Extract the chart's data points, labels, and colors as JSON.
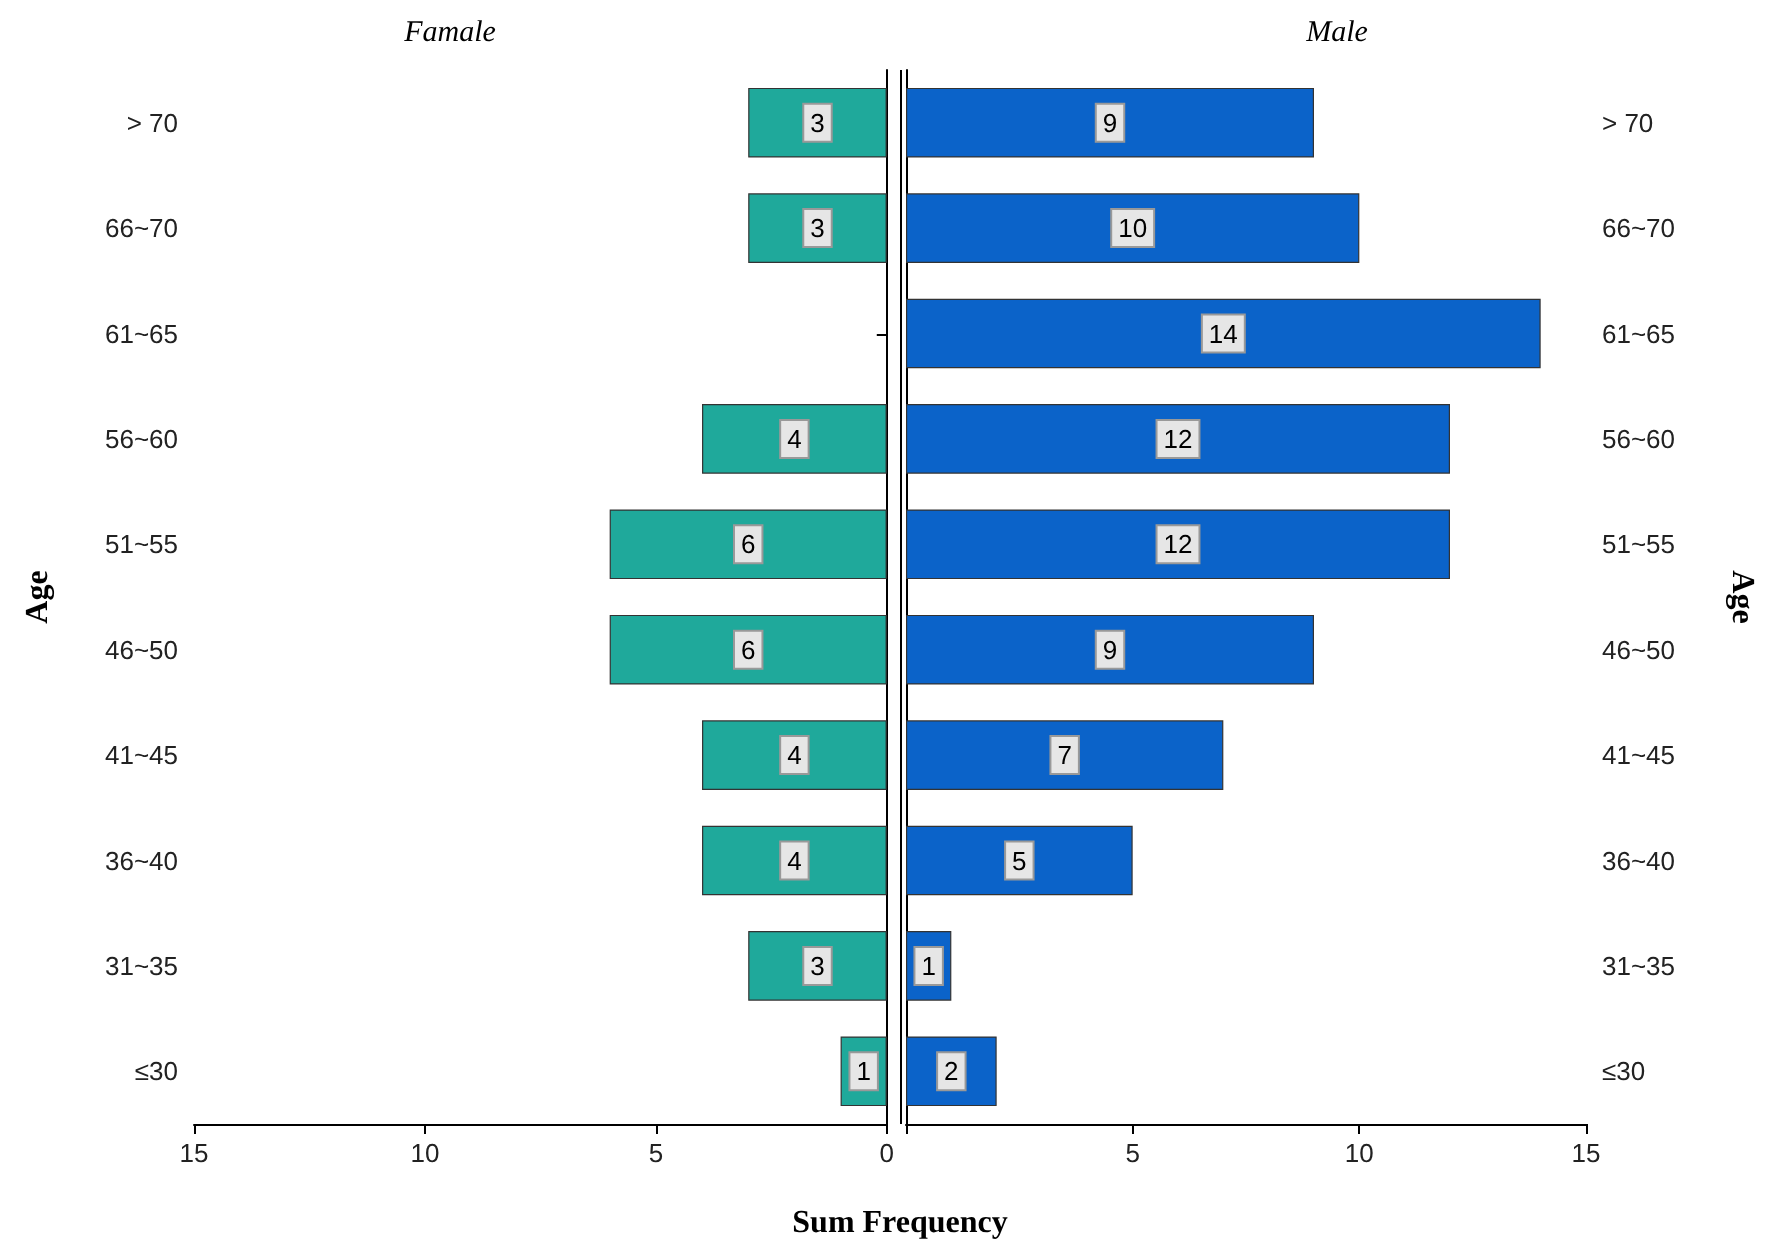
{
  "chart_data": [
    {
      "type": "bar",
      "orientation": "horizontal",
      "title": "Famale",
      "ylabel": "Age",
      "xlabel": "Sum Frequency",
      "categories": [
        "> 70",
        "66~70",
        "61~65",
        "56~60",
        "51~55",
        "46~50",
        "41~45",
        "36~40",
        "31~35",
        "≤30"
      ],
      "values": [
        3,
        3,
        null,
        4,
        6,
        6,
        4,
        4,
        3,
        1
      ],
      "color": "#1fa99b",
      "xlim": [
        15,
        0
      ],
      "xticks": [
        15,
        10,
        5,
        0
      ],
      "data_labels": true
    },
    {
      "type": "bar",
      "orientation": "horizontal",
      "title": "Male",
      "ylabel": "Age",
      "categories": [
        "> 70",
        "66~70",
        "61~65",
        "56~60",
        "51~55",
        "46~50",
        "41~45",
        "36~40",
        "31~35",
        "≤30"
      ],
      "values": [
        9,
        10,
        14,
        12,
        12,
        9,
        7,
        5,
        1,
        2
      ],
      "color": "#0b63c9",
      "xlim": [
        0,
        15
      ],
      "xticks": [
        {
          "value": 0,
          "label": null
        },
        5,
        10,
        15
      ],
      "data_labels": true
    }
  ]
}
